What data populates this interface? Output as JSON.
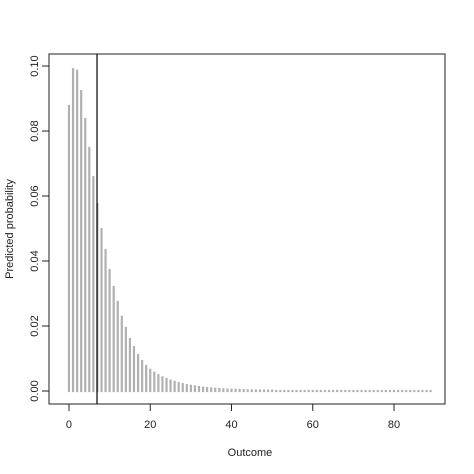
{
  "chart_data": {
    "type": "spike",
    "x_label": "Outcome",
    "y_label": "Predicted probability",
    "x": [
      0,
      1,
      2,
      3,
      4,
      5,
      6,
      7,
      8,
      9,
      10,
      11,
      12,
      13,
      14,
      15,
      16,
      17,
      18,
      19,
      20,
      21,
      22,
      23,
      24,
      25,
      26,
      27,
      28,
      29,
      30,
      31,
      32,
      33,
      34,
      35,
      36,
      37,
      38,
      39,
      40,
      41,
      42,
      43,
      44,
      45,
      46,
      47,
      48,
      49,
      50,
      51,
      52,
      53,
      54,
      55,
      56,
      57,
      58,
      59,
      60,
      61,
      62,
      63,
      64,
      65,
      66,
      67,
      68,
      69,
      70,
      71,
      72,
      73,
      74,
      75,
      76,
      77,
      78,
      79,
      80,
      81,
      82,
      83,
      84,
      85,
      86,
      87,
      88,
      89
    ],
    "values": [
      0.0877,
      0.099,
      0.0985,
      0.0923,
      0.0837,
      0.0748,
      0.0658,
      0.0575,
      0.0498,
      0.0434,
      0.0372,
      0.032,
      0.0274,
      0.0228,
      0.0194,
      0.016,
      0.0135,
      0.0111,
      0.0092,
      0.0077,
      0.0065,
      0.0056,
      0.0049,
      0.0042,
      0.0037,
      0.0032,
      0.0028,
      0.0024,
      0.0021,
      0.0018,
      0.0016,
      0.0014,
      0.0012,
      0.001,
      0.0009,
      0.0008,
      0.0007,
      0.0006,
      0.0005,
      0.00045,
      0.0004,
      0.00035,
      0.0003,
      0.00026,
      0.00022,
      0.0002,
      0.00017,
      0.00015,
      0.00013,
      0.00011,
      0.0001,
      0,
      0,
      0,
      0,
      0,
      0,
      0,
      0,
      0,
      0,
      0,
      0,
      0,
      0,
      0,
      0,
      0,
      0,
      0,
      0,
      0,
      0,
      0,
      0,
      0,
      0,
      0,
      0,
      0,
      0,
      0,
      0,
      0,
      0,
      0,
      0,
      0,
      0,
      0
    ],
    "color": "#b0b0b0",
    "vline": 6.9,
    "vline_color": "#000000",
    "xlim": [
      -4.92,
      92.55
    ],
    "ylim": [
      -0.004,
      0.1037
    ],
    "xticks": [
      0,
      20,
      40,
      60,
      80
    ],
    "yticks": [
      {
        "value": 0,
        "label": "0.00"
      },
      {
        "value": 0.02,
        "label": "0.02"
      },
      {
        "value": 0.04,
        "label": "0.04"
      },
      {
        "value": 0.06,
        "label": "0.06"
      },
      {
        "value": 0.08,
        "label": "0.08"
      },
      {
        "value": 0.1,
        "label": "0.10"
      }
    ],
    "grid": false
  }
}
